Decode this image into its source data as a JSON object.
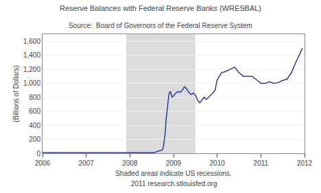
{
  "chart_data": {
    "type": "line",
    "title": "Reserve Balances with Federal Reserve Banks (WRESBAL)",
    "subtitle": "Source:  Board of Governors of the Federal Reserve System",
    "y_label": "(Billions of Dollars)",
    "annotations": [
      "Shaded areas indicate US recessions.",
      "2011 research.stlouisfed.org"
    ],
    "shaded": [
      [
        2007.917,
        2009.5
      ]
    ],
    "x": [
      2006.0,
      2006.1,
      2006.2,
      2006.3,
      2006.4,
      2006.5,
      2006.6,
      2006.7,
      2006.8,
      2006.9,
      2007.0,
      2007.1,
      2007.2,
      2007.3,
      2007.4,
      2007.5,
      2007.6,
      2007.7,
      2007.8,
      2007.9,
      2007.917,
      2007.95,
      2008.0,
      2008.05,
      2008.1,
      2008.15,
      2008.2,
      2008.25,
      2008.3,
      2008.35,
      2008.4,
      2008.45,
      2008.5,
      2008.55,
      2008.6,
      2008.65,
      2008.7,
      2008.75,
      2008.77,
      2008.79,
      2008.81,
      2008.83,
      2008.85,
      2008.87,
      2008.89,
      2008.91,
      2008.93,
      2008.95,
      2008.97,
      2009.0,
      2009.05,
      2009.1,
      2009.15,
      2009.2,
      2009.25,
      2009.3,
      2009.35,
      2009.4,
      2009.45,
      2009.5,
      2009.55,
      2009.6,
      2009.65,
      2009.7,
      2009.75,
      2009.8,
      2009.85,
      2009.9,
      2009.95,
      2010.0,
      2010.1,
      2010.2,
      2010.3,
      2010.4,
      2010.5,
      2010.6,
      2010.7,
      2010.8,
      2010.9,
      2011.0,
      2011.1,
      2011.2,
      2011.3,
      2011.4,
      2011.5,
      2011.6,
      2011.7,
      2011.8,
      2011.9,
      2011.95
    ],
    "values": [
      10,
      10,
      10,
      10,
      10,
      10,
      10,
      10,
      10,
      10,
      10,
      10,
      10,
      10,
      10,
      10,
      10,
      10,
      10,
      10,
      10,
      10,
      10,
      10,
      10,
      10,
      10,
      10,
      10,
      10,
      10,
      10,
      10,
      10,
      20,
      30,
      40,
      50,
      100,
      180,
      290,
      480,
      620,
      720,
      820,
      870,
      880,
      840,
      800,
      820,
      860,
      880,
      870,
      900,
      950,
      920,
      870,
      840,
      860,
      830,
      760,
      720,
      760,
      800,
      770,
      800,
      820,
      860,
      900,
      1050,
      1150,
      1170,
      1200,
      1230,
      1150,
      1100,
      1100,
      1100,
      1050,
      1000,
      1000,
      1020,
      1000,
      1010,
      1040,
      1060,
      1150,
      1300,
      1430,
      1500
    ],
    "color": "#2b3b9e",
    "xlim": [
      2006.0,
      2012.0
    ],
    "ylim": [
      0,
      1700
    ],
    "xticks": [
      2006,
      2007,
      2008,
      2009,
      2010,
      2011,
      2012
    ],
    "yticks": [
      0,
      200,
      400,
      600,
      800,
      {
        "value": 1000,
        "label": "1,000"
      },
      {
        "value": 1200,
        "label": "1,200"
      },
      {
        "value": 1400,
        "label": "1,400"
      },
      {
        "value": 1600,
        "label": "1,600"
      }
    ],
    "grid": true
  }
}
